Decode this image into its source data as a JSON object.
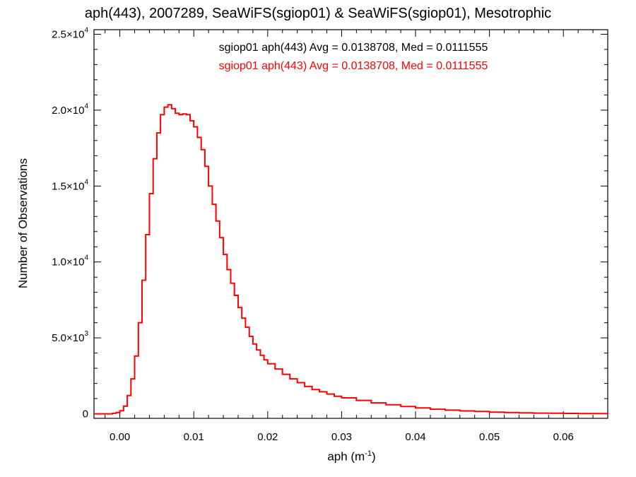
{
  "chart_data": {
    "type": "line",
    "title": "aph(443), 2007289, SeaWiFS(sgiop01) & SeaWiFS(sgiop01), Mesotrophic",
    "xlabel_main": "aph (m",
    "xlabel_exp": "-1",
    "xlabel_close": ")",
    "ylabel": "Number of Observations",
    "xlim": [
      -0.0035,
      0.066
    ],
    "ylim": [
      -300,
      25300
    ],
    "x_ticks": [
      0.0,
      0.01,
      0.02,
      0.03,
      0.04,
      0.05,
      0.06
    ],
    "x_tick_labels": [
      "0.00",
      "0.01",
      "0.02",
      "0.03",
      "0.04",
      "0.05",
      "0.06"
    ],
    "y_ticks": [
      0,
      5000,
      10000,
      15000,
      20000,
      25000
    ],
    "y_tick_labels": [
      {
        "mant": "0",
        "exp": ""
      },
      {
        "mant": "5.0×10",
        "exp": "3"
      },
      {
        "mant": "1.0×10",
        "exp": "4"
      },
      {
        "mant": "1.5×10",
        "exp": "4"
      },
      {
        "mant": "2.0×10",
        "exp": "4"
      },
      {
        "mant": "2.5×10",
        "exp": "4"
      }
    ],
    "annotations": [
      {
        "text": "sgiop01 aph(443) Avg = 0.0138708, Med = 0.0111555",
        "color": "#000000"
      },
      {
        "text": "sgiop01 aph(443) Avg = 0.0138708, Med = 0.0111555",
        "color": "#ff0000"
      }
    ],
    "grid": false,
    "series": [
      {
        "color": "#ff0000",
        "step": true,
        "x": [
          -0.0035,
          -0.002,
          -0.001,
          -0.0005,
          0.0,
          0.0005,
          0.001,
          0.0015,
          0.002,
          0.0025,
          0.003,
          0.0035,
          0.004,
          0.0045,
          0.005,
          0.0055,
          0.006,
          0.0065,
          0.007,
          0.0075,
          0.008,
          0.0085,
          0.009,
          0.0095,
          0.01,
          0.0105,
          0.011,
          0.0115,
          0.012,
          0.0125,
          0.013,
          0.0135,
          0.014,
          0.0145,
          0.015,
          0.0155,
          0.016,
          0.0165,
          0.017,
          0.0175,
          0.018,
          0.0185,
          0.019,
          0.0195,
          0.02,
          0.021,
          0.022,
          0.023,
          0.024,
          0.025,
          0.026,
          0.027,
          0.028,
          0.029,
          0.03,
          0.032,
          0.034,
          0.036,
          0.038,
          0.04,
          0.042,
          0.044,
          0.046,
          0.048,
          0.05,
          0.052,
          0.054,
          0.056,
          0.058,
          0.06,
          0.062,
          0.064,
          0.066
        ],
        "y": [
          0,
          0,
          30,
          80,
          200,
          500,
          1200,
          2300,
          3800,
          6000,
          8800,
          11800,
          14500,
          16800,
          18500,
          19700,
          20200,
          20350,
          20100,
          19800,
          19700,
          19750,
          19700,
          19300,
          18900,
          18200,
          17400,
          16300,
          15000,
          13800,
          12700,
          11600,
          10500,
          9500,
          8600,
          7800,
          7000,
          6300,
          5700,
          5100,
          4600,
          4200,
          3850,
          3550,
          3300,
          2950,
          2600,
          2300,
          2050,
          1800,
          1600,
          1450,
          1300,
          1150,
          1050,
          880,
          720,
          600,
          480,
          390,
          300,
          240,
          190,
          150,
          110,
          80,
          60,
          45,
          35,
          25,
          15,
          10,
          5
        ]
      }
    ]
  }
}
